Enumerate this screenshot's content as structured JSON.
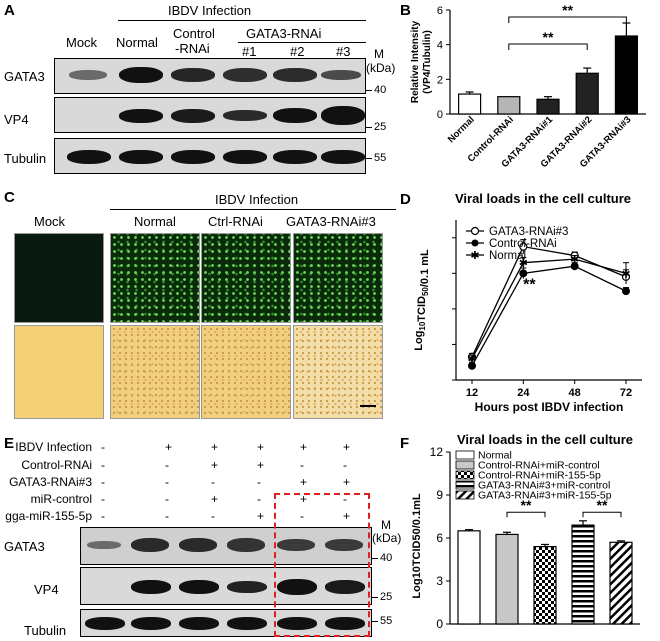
{
  "panelA": {
    "letter": "A",
    "header": "IBDV Infection",
    "subheader": "GATA3-RNAi",
    "lanes": [
      "Mock",
      "Normal",
      "Control\n-RNAi",
      "#1",
      "#2",
      "#3"
    ],
    "lane_top": [
      "Mock",
      "Normal",
      "Control"
    ],
    "lane_ctrl2": "-RNAi",
    "lane_nums": [
      "#1",
      "#2",
      "#3"
    ],
    "rows": [
      "GATA3",
      "VP4",
      "Tubulin"
    ],
    "mw_label": "M",
    "mw_unit": "(kDa)",
    "markers": [
      "40",
      "25",
      "55"
    ]
  },
  "panelB": {
    "letter": "B",
    "sig": "**"
  },
  "panelC": {
    "letter": "C",
    "header": "IBDV Infection",
    "cols": [
      "Mock",
      "Normal",
      "Ctrl-RNAi",
      "GATA3-RNAi#3"
    ]
  },
  "panelD": {
    "letter": "D",
    "sig": "**"
  },
  "panelE": {
    "letter": "E",
    "row_labels": [
      "IBDV Infection",
      "Control-RNAi",
      "GATA3-RNAi#3",
      "miR-control",
      "gga-miR-155-5p"
    ],
    "signs": [
      [
        "-",
        "+",
        "+",
        "+",
        "+",
        "+"
      ],
      [
        "-",
        "-",
        "+",
        "+",
        "-",
        "-"
      ],
      [
        "-",
        "-",
        "-",
        "-",
        "+",
        "+"
      ],
      [
        "-",
        "-",
        "+",
        "-",
        "+",
        "-"
      ],
      [
        "-",
        "-",
        "-",
        "+",
        "-",
        "+"
      ]
    ],
    "rows": [
      "GATA3",
      "VP4",
      "Tubulin"
    ],
    "mw_label": "M",
    "mw_unit": "(kDa)",
    "markers": [
      "40",
      "25",
      "55"
    ]
  },
  "panelF": {
    "letter": "F",
    "sig": "**"
  },
  "chart_data": [
    {
      "type": "bar",
      "title": "",
      "ylabel": "Relative Intensity\n(VP4/Tubulin)",
      "categories": [
        "Normal",
        "Control-RNAi",
        "GATA3-RNAi#1",
        "GATA3-RNAi#2",
        "GATA3-RNAi#3"
      ],
      "values": [
        1.15,
        1.0,
        0.85,
        2.35,
        4.5
      ],
      "errors": [
        0.12,
        0.0,
        0.15,
        0.3,
        0.75
      ],
      "colors": [
        "#ffffff",
        "#b5b5b5",
        "#222222",
        "#222222",
        "#000000"
      ],
      "ylim": [
        0,
        6
      ],
      "yticks": [
        0,
        2,
        4,
        6
      ],
      "annotations": [
        {
          "from": 1,
          "to": 3,
          "text": "**"
        },
        {
          "from": 1,
          "to": 4,
          "text": "**"
        }
      ]
    },
    {
      "type": "line",
      "title": "Viral loads in the cell culture",
      "xlabel": "Hours post IBDV infection",
      "ylabel": "Log10TCID50/0.1 mL",
      "x": [
        12,
        24,
        48,
        72
      ],
      "ylim": [
        3,
        7.5
      ],
      "yticks": [
        3,
        4,
        5,
        6,
        7
      ],
      "series": [
        {
          "name": "GATA3-RNAi#3",
          "values": [
            3.65,
            6.75,
            6.5,
            5.9
          ],
          "errors": [
            0.1,
            0.2,
            0.1,
            0.2
          ],
          "marker": "open-circle"
        },
        {
          "name": "Control-RNAi",
          "values": [
            3.4,
            6.0,
            6.2,
            5.5
          ],
          "errors": [
            0.1,
            0.15,
            0.1,
            0.1
          ],
          "marker": "filled-circle"
        },
        {
          "name": "Normal",
          "values": [
            3.6,
            6.3,
            6.4,
            6.0
          ],
          "errors": [
            0.1,
            0.15,
            0.1,
            0.3
          ],
          "marker": "star"
        }
      ],
      "annotations": [
        {
          "x": 24,
          "text": "**"
        }
      ]
    },
    {
      "type": "bar",
      "title": "Viral loads in the cell culture",
      "ylabel": "Log10TCID50/0.1mL",
      "categories": [
        "Normal",
        "Control-RNAi+miR-control",
        "Control-RNAi+miR-155-5p",
        "GATA3-RNAi#3+miR-control",
        "GATA3-RNAi#3+miR-155-5p"
      ],
      "values": [
        6.5,
        6.25,
        5.4,
        6.9,
        5.7
      ],
      "errors": [
        0.08,
        0.15,
        0.15,
        0.3,
        0.1
      ],
      "patterns": [
        "white",
        "gray",
        "checker",
        "horizontal",
        "diagonal"
      ],
      "ylim": [
        0,
        12
      ],
      "yticks": [
        0,
        3,
        6,
        9,
        12
      ],
      "annotations": [
        {
          "from": 1,
          "to": 2,
          "text": "**"
        },
        {
          "from": 3,
          "to": 4,
          "text": "**"
        }
      ]
    }
  ]
}
